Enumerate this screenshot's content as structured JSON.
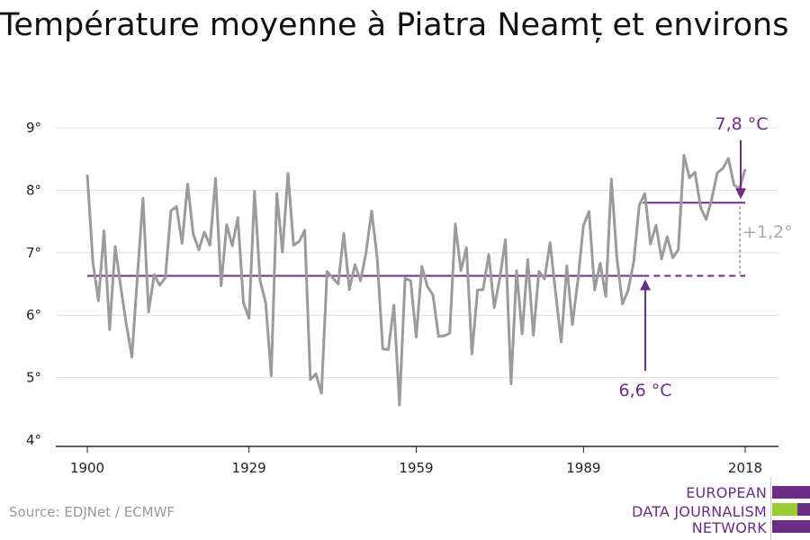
{
  "title": "Température moyenne à Piatra Neamț et environs",
  "source": "Source: EDJNet / ECMWF",
  "logo": {
    "lines": [
      "EUROPEAN",
      "DATA JOURNALISM",
      "NETWORK"
    ]
  },
  "colors": {
    "series": "#9b9b9b",
    "reference": "#6b2d86",
    "delta": "#aaaaaa",
    "logo_purple": "#6b2d86",
    "logo_green": "#9acd32",
    "grid": "#dddddd"
  },
  "chart_data": {
    "type": "line",
    "title": "Température moyenne à Piatra Neamț et environs",
    "xlabel": "",
    "ylabel": "",
    "xlim": [
      1900,
      2018
    ],
    "ylim": [
      4,
      9
    ],
    "x_ticks": [
      1900,
      1929,
      1959,
      1989,
      2018
    ],
    "y_ticks": [
      {
        "value": 4,
        "label": "4°"
      },
      {
        "value": 5,
        "label": "5°"
      },
      {
        "value": 6,
        "label": "6°"
      },
      {
        "value": 7,
        "label": "7°"
      },
      {
        "value": 8,
        "label": "8°"
      },
      {
        "value": 9,
        "label": "9°"
      }
    ],
    "grid": true,
    "series": [
      {
        "x": [
          1900,
          1901,
          1902,
          1903,
          1904,
          1905,
          1906,
          1907,
          1908,
          1909,
          1910,
          1911,
          1912,
          1913,
          1914,
          1915,
          1916,
          1917,
          1918,
          1919,
          1920,
          1921,
          1922,
          1923,
          1924,
          1925,
          1926,
          1927,
          1928,
          1929,
          1930,
          1931,
          1932,
          1933,
          1934,
          1935,
          1936,
          1937,
          1938,
          1939,
          1940,
          1941,
          1942,
          1943,
          1944,
          1945,
          1946,
          1947,
          1948,
          1949,
          1950,
          1951,
          1952,
          1953,
          1954,
          1955,
          1956,
          1957,
          1958,
          1959,
          1960,
          1961,
          1962,
          1963,
          1964,
          1965,
          1966,
          1967,
          1968,
          1969,
          1970,
          1971,
          1972,
          1973,
          1974,
          1975,
          1976,
          1977,
          1978,
          1979,
          1980,
          1981,
          1982,
          1983,
          1984,
          1985,
          1986,
          1987,
          1988,
          1989,
          1990,
          1991,
          1992,
          1993,
          1994,
          1995,
          1996,
          1997,
          1998,
          1999,
          2000,
          2001,
          2002,
          2003,
          2004,
          2005,
          2006,
          2007,
          2008,
          2009,
          2010,
          2011,
          2012,
          2013,
          2014,
          2015,
          2016,
          2017,
          2018
        ],
        "values": [
          8.25,
          6.85,
          6.23,
          7.35,
          5.77,
          7.1,
          6.45,
          5.85,
          5.33,
          6.65,
          7.87,
          6.05,
          6.65,
          6.48,
          6.6,
          7.67,
          7.74,
          7.15,
          8.1,
          7.3,
          7.05,
          7.33,
          7.12,
          8.19,
          6.47,
          7.45,
          7.11,
          7.56,
          6.2,
          5.95,
          7.98,
          6.55,
          6.2,
          5.03,
          7.95,
          7.01,
          8.27,
          7.12,
          7.18,
          7.36,
          4.97,
          5.06,
          4.75,
          6.7,
          6.6,
          6.5,
          7.31,
          6.41,
          6.81,
          6.55,
          7.0,
          7.67,
          6.92,
          5.46,
          5.45,
          6.16,
          4.56,
          6.59,
          6.55,
          5.65,
          6.78,
          6.46,
          6.32,
          5.66,
          5.67,
          5.71,
          7.46,
          6.71,
          7.08,
          5.38,
          6.4,
          6.41,
          6.97,
          6.12,
          6.6,
          7.21,
          4.9,
          6.71,
          5.7,
          6.89,
          5.68,
          6.7,
          6.58,
          7.16,
          6.35,
          5.57,
          6.79,
          5.85,
          6.57,
          7.44,
          7.66,
          6.4,
          6.83,
          6.3,
          8.18,
          6.9,
          6.18,
          6.4,
          6.85,
          7.76,
          7.95,
          7.14,
          7.44,
          6.9,
          7.26,
          6.92,
          7.05,
          8.56,
          8.2,
          8.29,
          7.73,
          7.53,
          7.86,
          8.28,
          8.35,
          8.51,
          8.08,
          8.03,
          8.34
        ]
      }
    ],
    "reference_lines": [
      {
        "label": "6,6 °C",
        "value": 6.63,
        "x_start": 1900,
        "x_end": 1999,
        "dashed_to": 2018
      },
      {
        "label": "7,8 °C",
        "value": 7.8,
        "x_start": 1999,
        "x_end": 2018
      }
    ],
    "annotations": {
      "low_label": "6,6 °C",
      "high_label": "7,8 °C",
      "delta_label": "+1,2°"
    }
  }
}
